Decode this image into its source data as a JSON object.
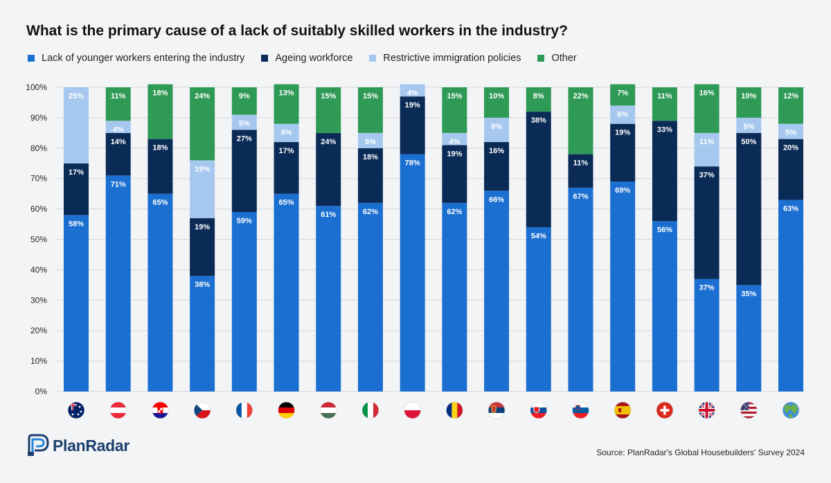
{
  "chart_data": {
    "type": "bar",
    "stacked": true,
    "title": "What is the primary cause of a lack of suitably skilled workers in the industry?",
    "ylim": [
      0,
      100
    ],
    "yticks": [
      "0%",
      "10%",
      "20%",
      "30%",
      "40%",
      "50%",
      "60%",
      "70%",
      "80%",
      "90%",
      "100%"
    ],
    "grid": true,
    "legend_position": "top",
    "categories": [
      "australia-flag",
      "austria-flag",
      "croatia-flag",
      "czechia-flag",
      "france-flag",
      "germany-flag",
      "hungary-flag",
      "italy-flag",
      "poland-flag",
      "romania-flag",
      "serbia-flag",
      "slovakia-flag",
      "slovenia-flag",
      "spain-flag",
      "switzerland-flag",
      "uk-flag",
      "usa-flag",
      "globe-icon"
    ],
    "series": [
      {
        "name": "Lack of younger workers entering the industry",
        "color": "#1a6fd0",
        "values": [
          58,
          71,
          65,
          38,
          59,
          65,
          61,
          62,
          78,
          62,
          66,
          54,
          67,
          69,
          56,
          37,
          35,
          63
        ]
      },
      {
        "name": "Ageing workforce",
        "color": "#0b2b57",
        "values": [
          17,
          14,
          18,
          19,
          27,
          17,
          24,
          18,
          19,
          19,
          16,
          38,
          11,
          19,
          33,
          37,
          50,
          20
        ]
      },
      {
        "name": "Restrictive immigration policies",
        "color": "#a6c8ef",
        "values": [
          25,
          4,
          0,
          19,
          5,
          6,
          0,
          5,
          4,
          4,
          8,
          0,
          0,
          6,
          0,
          11,
          5,
          5
        ]
      },
      {
        "name": "Other",
        "color": "#2f9a55",
        "values": [
          0,
          11,
          18,
          24,
          9,
          13,
          15,
          15,
          0,
          15,
          10,
          8,
          22,
          7,
          11,
          16,
          10,
          12
        ]
      }
    ]
  },
  "brand": {
    "name": "PlanRadar"
  },
  "source": "Source: PlanRadar's Global Housebuilders' Survey 2024"
}
